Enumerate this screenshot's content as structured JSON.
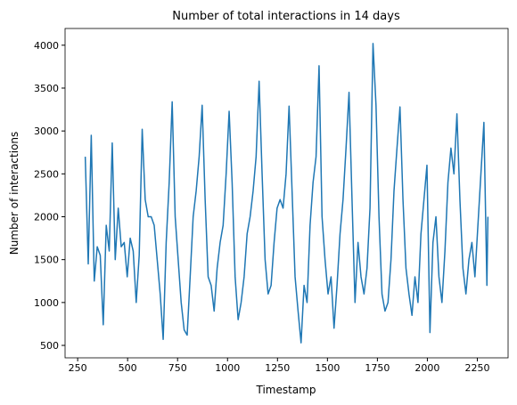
{
  "chart_data": {
    "type": "line",
    "title": "Number of total interactions in 14 days",
    "x_label": "Timestamp",
    "y_label": "Number of interactions",
    "x": [
      288,
      303,
      318,
      333,
      348,
      363,
      378,
      393,
      408,
      423,
      438,
      453,
      468,
      483,
      498,
      513,
      528,
      543,
      558,
      573,
      588,
      603,
      618,
      633,
      648,
      663,
      678,
      693,
      708,
      723,
      738,
      753,
      768,
      783,
      798,
      813,
      828,
      843,
      858,
      873,
      888,
      903,
      918,
      933,
      948,
      963,
      978,
      993,
      1008,
      1023,
      1038,
      1053,
      1068,
      1083,
      1098,
      1113,
      1128,
      1143,
      1158,
      1173,
      1188,
      1203,
      1218,
      1233,
      1248,
      1263,
      1278,
      1293,
      1308,
      1323,
      1338,
      1353,
      1368,
      1383,
      1398,
      1413,
      1428,
      1443,
      1458,
      1473,
      1488,
      1503,
      1518,
      1533,
      1548,
      1563,
      1578,
      1593,
      1608,
      1623,
      1638,
      1653,
      1668,
      1683,
      1698,
      1713,
      1728,
      1743,
      1758,
      1773,
      1788,
      1803,
      1818,
      1833,
      1848,
      1863,
      1878,
      1893,
      1908,
      1923,
      1938,
      1953,
      1968,
      1983,
      1998,
      2013,
      2028,
      2043,
      2058,
      2073,
      2088,
      2103,
      2118,
      2133,
      2148,
      2163,
      2178,
      2193,
      2208,
      2223,
      2238,
      2253,
      2268,
      2283,
      2298,
      2303
    ],
    "series": [
      {
        "name": "interactions",
        "color": "#1f77b4",
        "values": [
          2700,
          1450,
          2950,
          1250,
          1650,
          1550,
          740,
          1900,
          1600,
          2860,
          1500,
          2100,
          1650,
          1700,
          1300,
          1750,
          1600,
          1000,
          1550,
          3020,
          2200,
          2000,
          2000,
          1900,
          1500,
          1100,
          570,
          1700,
          2400,
          3340,
          2000,
          1500,
          1000,
          680,
          620,
          1300,
          2000,
          2300,
          2700,
          3300,
          2200,
          1300,
          1200,
          900,
          1400,
          1700,
          1900,
          2500,
          3230,
          2400,
          1300,
          800,
          1000,
          1300,
          1800,
          2000,
          2300,
          2700,
          3580,
          2500,
          1500,
          1100,
          1200,
          1700,
          2100,
          2200,
          2100,
          2500,
          3290,
          2300,
          1300,
          900,
          530,
          1200,
          1000,
          1900,
          2400,
          2700,
          3760,
          2000,
          1500,
          1100,
          1300,
          700,
          1200,
          1800,
          2200,
          2800,
          3450,
          2200,
          1000,
          1700,
          1300,
          1100,
          1400,
          2100,
          4020,
          3300,
          2000,
          1100,
          900,
          1000,
          1500,
          2300,
          2800,
          3280,
          2200,
          1400,
          1100,
          850,
          1300,
          1000,
          1800,
          2200,
          2600,
          650,
          1700,
          2000,
          1300,
          1000,
          1600,
          2400,
          2800,
          2500,
          3200,
          2200,
          1400,
          1100,
          1500,
          1700,
          1300,
          1900,
          2500,
          3100,
          1200,
          2000
        ]
      }
    ],
    "xlim": [
      187,
      2404
    ],
    "ylim": [
      355,
      4195
    ],
    "xticks": [
      250,
      500,
      750,
      1000,
      1250,
      1500,
      1750,
      2000,
      2250
    ],
    "yticks": [
      500,
      1000,
      1500,
      2000,
      2500,
      3000,
      3500,
      4000
    ]
  }
}
